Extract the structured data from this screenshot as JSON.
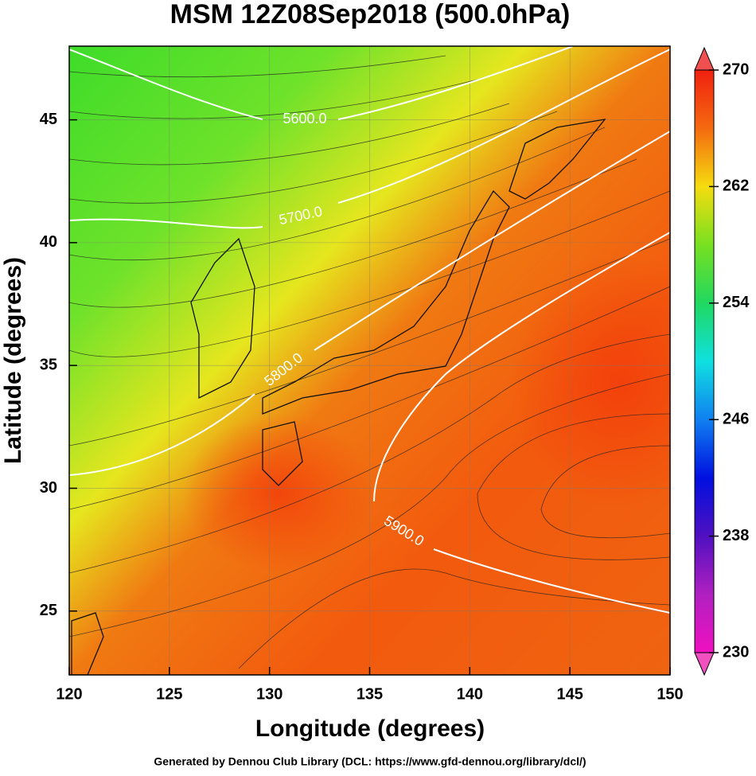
{
  "chart_data": {
    "type": "contour-map",
    "title": "MSM 12Z08Sep2018 (500.0hPa)",
    "x_label": "Longitude (degrees)",
    "y_label": "Latitude  (degrees)",
    "footer": "Generated by Dennou Club Library (DCL: https://www.gfd-dennou.org/library/dcl/)",
    "xlim": [
      120,
      150
    ],
    "xticks": [
      120,
      125,
      130,
      135,
      140,
      145,
      150
    ],
    "ylim": [
      22.4,
      48
    ],
    "yticks": [
      25,
      30,
      35,
      40,
      45
    ],
    "colorbar": {
      "lim": [
        230,
        270
      ],
      "ticks": [
        230,
        238,
        246,
        254,
        262,
        270
      ]
    },
    "contours": [
      {
        "value": 5600,
        "label": "5600.0"
      },
      {
        "value": 5700,
        "label": "5700.0"
      },
      {
        "value": 5800,
        "label": "5800.0"
      },
      {
        "value": 5900,
        "label": "5900.0"
      }
    ],
    "grid": true
  }
}
